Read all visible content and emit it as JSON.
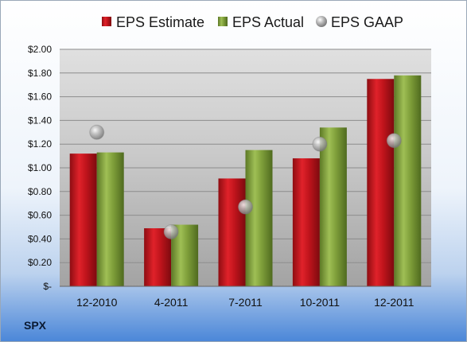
{
  "ticker": "SPX",
  "chart_data": {
    "type": "bar",
    "categories": [
      "12-2010",
      "4-2011",
      "7-2011",
      "10-2011",
      "12-2011"
    ],
    "series": [
      {
        "name": "EPS Estimate",
        "kind": "bar",
        "color": "#c0141c",
        "values": [
          1.12,
          0.49,
          0.91,
          1.08,
          1.75
        ]
      },
      {
        "name": "EPS Actual",
        "kind": "bar",
        "color": "#7f9f3a",
        "values": [
          1.13,
          0.52,
          1.15,
          1.34,
          1.78
        ]
      },
      {
        "name": "EPS GAAP",
        "kind": "marker",
        "color": "#a9a9a9",
        "values": [
          1.3,
          0.46,
          0.67,
          1.2,
          1.23
        ]
      }
    ],
    "ylim": [
      0,
      2.0
    ],
    "yticks": [
      {
        "value": 2.0,
        "label": "$2.00"
      },
      {
        "value": 1.8,
        "label": "$1.80"
      },
      {
        "value": 1.6,
        "label": "$1.60"
      },
      {
        "value": 1.4,
        "label": "$1.40"
      },
      {
        "value": 1.2,
        "label": "$1.20"
      },
      {
        "value": 1.0,
        "label": "$1.00"
      },
      {
        "value": 0.8,
        "label": "$0.80"
      },
      {
        "value": 0.6,
        "label": "$0.60"
      },
      {
        "value": 0.4,
        "label": "$0.40"
      },
      {
        "value": 0.2,
        "label": "$0.20"
      },
      {
        "value": 0.0,
        "label": "$-"
      }
    ],
    "grid": true,
    "legend": "top"
  }
}
